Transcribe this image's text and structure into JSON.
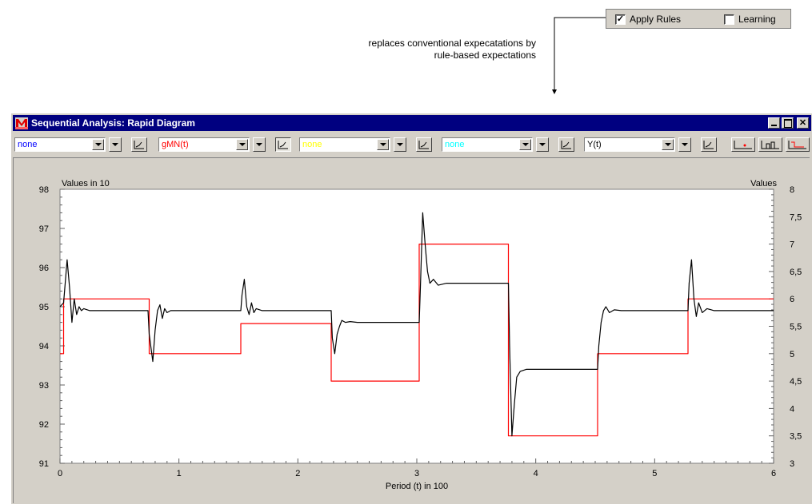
{
  "rules_panel": {
    "apply_rules": {
      "label": "Apply Rules",
      "checked": true
    },
    "learning": {
      "label": "Learning",
      "checked": false
    }
  },
  "annotation": {
    "line1": "replaces conventional expecatations by",
    "line2": "rule-based expectations"
  },
  "window": {
    "title": "Sequential Analysis: Rapid Diagram",
    "controls": [
      "minimize",
      "maximize",
      "close"
    ]
  },
  "toolbar": {
    "series_selectors": [
      {
        "value": "none",
        "color": "#0000ff"
      },
      {
        "value": "gMN(t)",
        "color": "#ff0000"
      },
      {
        "value": "none",
        "color": "#ffff00"
      },
      {
        "value": "none",
        "color": "#00ffff"
      },
      {
        "value": "Y(t)",
        "color": "#000000"
      }
    ]
  },
  "chart_data": {
    "type": "line",
    "title": "",
    "xlabel": "Period (t) in 100",
    "ylabel_left": "Values in 10",
    "ylabel_right": "Values",
    "xlim": [
      0,
      6
    ],
    "ylim_left": [
      91,
      98
    ],
    "ylim_right": [
      3,
      8
    ],
    "x_ticks": [
      "0",
      "1",
      "2",
      "3",
      "4",
      "5",
      "6"
    ],
    "y_ticks_left": [
      "91",
      "92",
      "93",
      "94",
      "95",
      "96",
      "97",
      "98"
    ],
    "y_ticks_right": [
      "3",
      "3,5",
      "4",
      "4,5",
      "5",
      "5,5",
      "6",
      "6,5",
      "7",
      "7,5",
      "8"
    ],
    "series": [
      {
        "name": "gMN(t)",
        "color": "#ff0000",
        "axis": "right",
        "x": [
          0,
          0.03,
          0.03,
          0.75,
          0.75,
          1.52,
          1.52,
          2.28,
          2.28,
          3.02,
          3.02,
          3.77,
          3.77,
          4.52,
          4.52,
          5.28,
          5.28,
          6.0
        ],
        "y": [
          5.0,
          5.0,
          6.0,
          6.0,
          5.0,
          5.0,
          5.55,
          5.55,
          4.5,
          4.5,
          7.0,
          7.0,
          3.5,
          3.5,
          5.0,
          5.0,
          6.0,
          6.0
        ]
      },
      {
        "name": "Y(t)",
        "color": "#000000",
        "axis": "left",
        "x": [
          0,
          0.03,
          0.06,
          0.08,
          0.1,
          0.12,
          0.14,
          0.16,
          0.18,
          0.2,
          0.25,
          0.74,
          0.75,
          0.78,
          0.8,
          0.82,
          0.84,
          0.86,
          0.88,
          0.9,
          0.93,
          0.97,
          1.0,
          1.52,
          1.53,
          1.55,
          1.57,
          1.59,
          1.61,
          1.63,
          1.65,
          1.7,
          1.75,
          2.28,
          2.29,
          2.31,
          2.33,
          2.35,
          2.37,
          2.4,
          2.44,
          2.5,
          3.02,
          3.03,
          3.05,
          3.07,
          3.09,
          3.11,
          3.14,
          3.18,
          3.25,
          3.77,
          3.78,
          3.8,
          3.82,
          3.84,
          3.87,
          3.92,
          4.0,
          4.52,
          4.53,
          4.55,
          4.57,
          4.59,
          4.62,
          4.66,
          4.72,
          5.28,
          5.29,
          5.31,
          5.33,
          5.35,
          5.37,
          5.4,
          5.44,
          5.5,
          6.0
        ],
        "y": [
          95.0,
          95.1,
          96.2,
          95.5,
          94.6,
          95.2,
          94.8,
          95.0,
          94.9,
          94.95,
          94.9,
          94.9,
          94.3,
          93.6,
          94.4,
          94.9,
          95.05,
          94.7,
          94.95,
          94.85,
          94.9,
          94.9,
          94.9,
          94.9,
          95.3,
          95.7,
          95.0,
          94.8,
          95.1,
          94.85,
          94.95,
          94.9,
          94.9,
          94.9,
          94.2,
          93.8,
          94.3,
          94.5,
          94.65,
          94.6,
          94.62,
          94.6,
          94.6,
          95.5,
          97.4,
          96.6,
          95.9,
          95.6,
          95.7,
          95.55,
          95.6,
          95.6,
          94.0,
          91.7,
          92.5,
          93.2,
          93.35,
          93.4,
          93.4,
          93.4,
          94.0,
          94.6,
          94.9,
          95.0,
          94.85,
          94.92,
          94.9,
          94.9,
          95.6,
          96.2,
          95.2,
          94.75,
          95.1,
          94.85,
          94.95,
          94.9,
          94.9
        ]
      }
    ],
    "grid": false,
    "legend": "none"
  }
}
